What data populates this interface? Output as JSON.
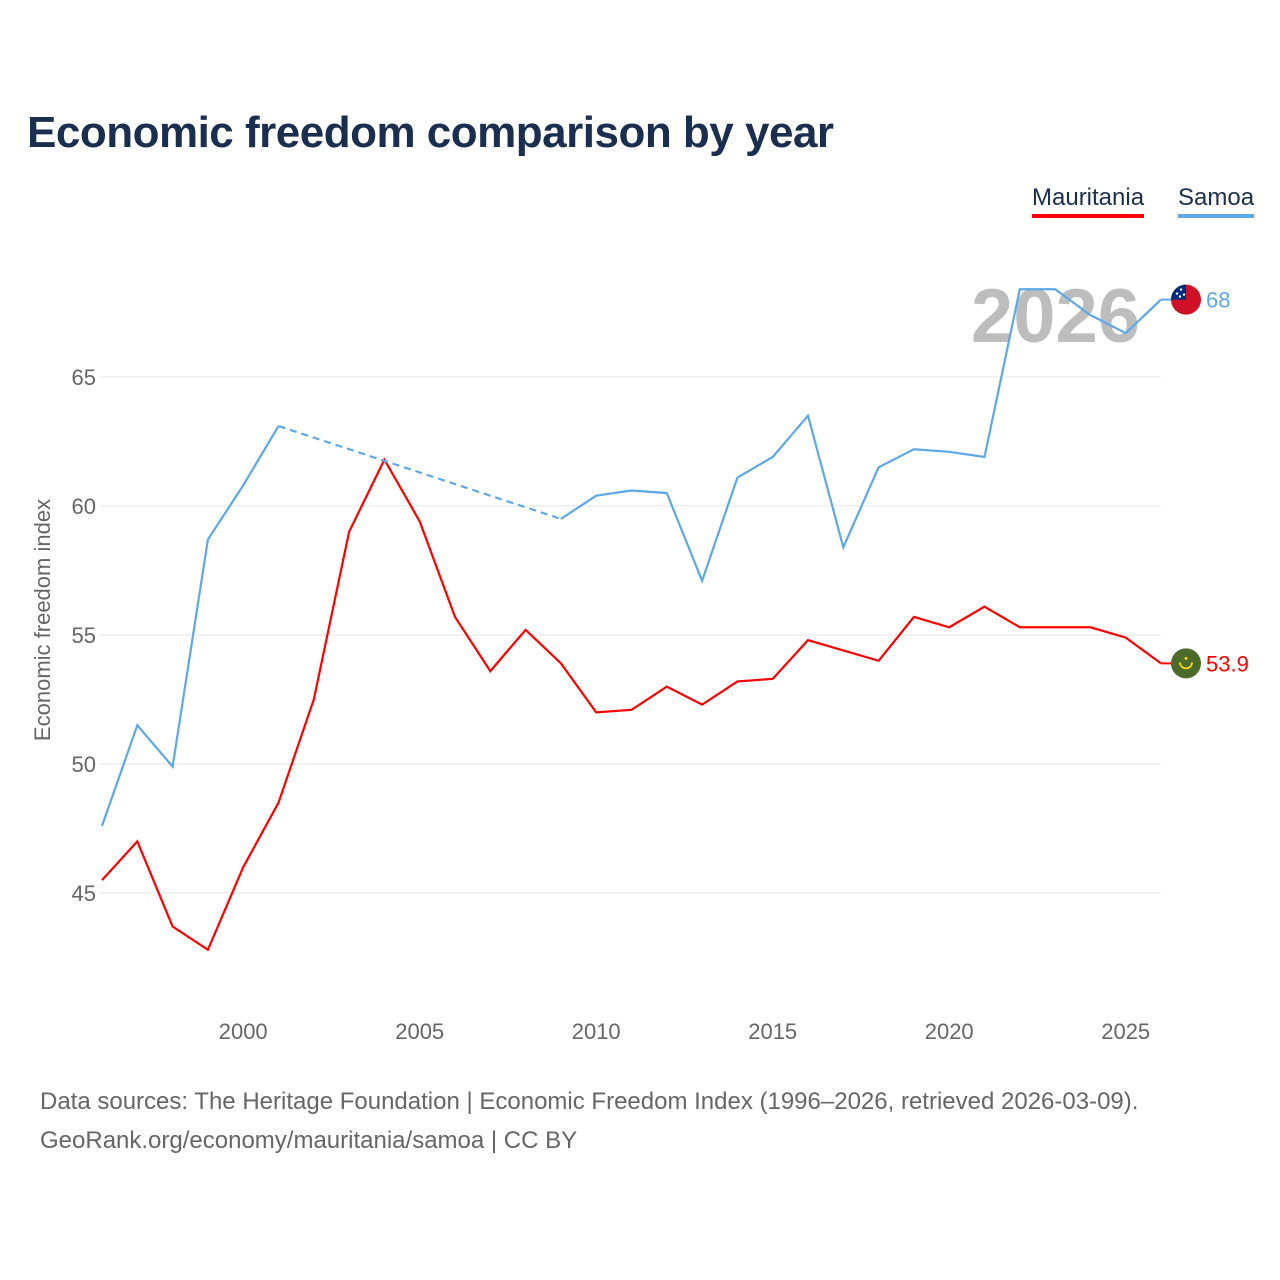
{
  "title": "Economic freedom comparison by year",
  "footer": {
    "line1": "Data sources: The Heritage Foundation | Economic Freedom Index (1996–2026, retrieved 2026-03-09).",
    "line2": "GeoRank.org/economy/mauritania/samoa | CC BY"
  },
  "chart_data": {
    "type": "line",
    "title": "Economic freedom comparison by year",
    "ylabel": "Economic freedom index",
    "xlabel": "",
    "year_label": "2026",
    "xlim": [
      1996,
      2026
    ],
    "ylim": [
      40.5,
      70
    ],
    "xticks": [
      2000,
      2005,
      2010,
      2015,
      2020,
      2025
    ],
    "yticks": [
      45,
      50,
      55,
      60,
      65
    ],
    "grid": true,
    "legend_placement": "top-right",
    "x": [
      1996,
      1997,
      1998,
      1999,
      2000,
      2001,
      2002,
      2003,
      2004,
      2005,
      2006,
      2007,
      2008,
      2009,
      2010,
      2011,
      2012,
      2013,
      2014,
      2015,
      2016,
      2017,
      2018,
      2019,
      2020,
      2021,
      2022,
      2023,
      2024,
      2025,
      2026
    ],
    "series": [
      {
        "name": "Mauritania",
        "color": "#ff0000",
        "end_label": "53.9",
        "flag": "mauritania-flag",
        "values": [
          45.5,
          47.0,
          43.7,
          42.8,
          46.0,
          48.5,
          52.5,
          59.0,
          61.8,
          59.4,
          55.7,
          53.6,
          55.2,
          53.9,
          52.0,
          52.1,
          53.0,
          52.3,
          53.2,
          53.3,
          54.8,
          54.4,
          54.0,
          55.7,
          55.3,
          56.1,
          55.3,
          55.3,
          55.3,
          54.9,
          53.9
        ]
      },
      {
        "name": "Samoa",
        "color": "#5ea8e8",
        "end_label": "68",
        "flag": "samoa-flag",
        "values": [
          47.6,
          51.5,
          49.9,
          58.7,
          60.8,
          63.1,
          null,
          null,
          null,
          null,
          null,
          null,
          null,
          59.5,
          60.4,
          60.6,
          60.5,
          57.1,
          61.1,
          61.9,
          63.5,
          58.4,
          61.5,
          62.2,
          62.1,
          61.9,
          68.4,
          68.4,
          67.4,
          66.7,
          68.0
        ]
      }
    ]
  }
}
